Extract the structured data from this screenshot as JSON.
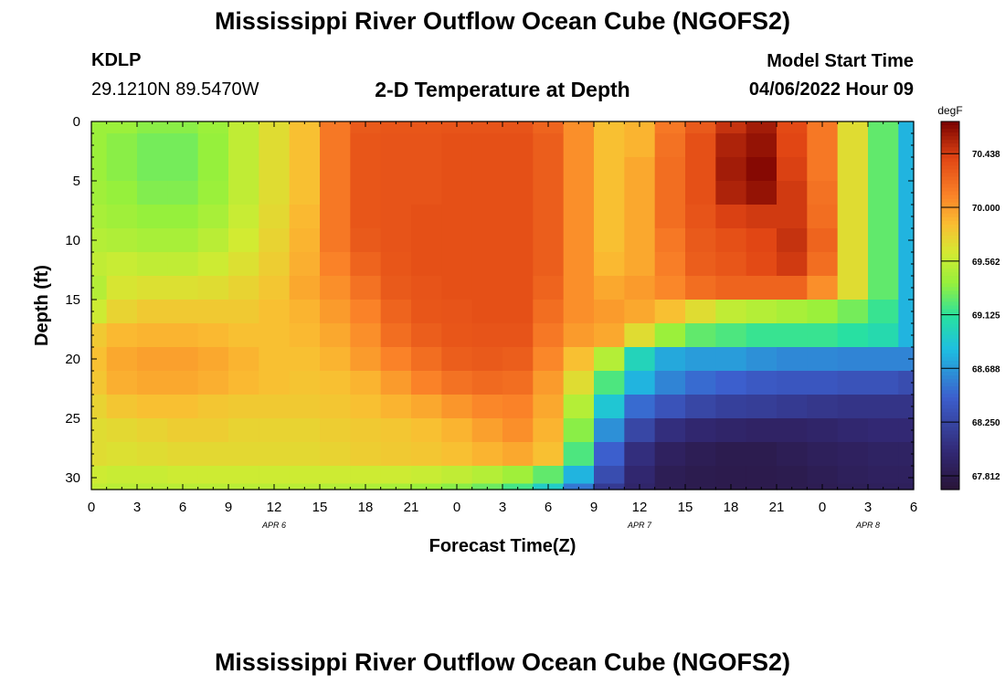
{
  "page": {
    "title": "Mississippi River Outflow Ocean Cube (NGOFS2)",
    "station": {
      "id": "KDLP",
      "coords": "29.1210N  89.5470W"
    },
    "subtitle": "2-D Temperature at Depth",
    "model_start": {
      "label": "Model Start Time",
      "value": "04/06/2022 Hour 09"
    },
    "footer_title": "Mississippi River Outflow Ocean Cube (NGOFS2)"
  },
  "chart_data": {
    "type": "heatmap",
    "title": "2-D Temperature at Depth",
    "xlabel": "Forecast Time(Z)",
    "ylabel": "Depth (ft)",
    "x_range": [
      0,
      54
    ],
    "y_range": [
      0,
      31
    ],
    "x_major_ticks": [
      0,
      3,
      6,
      9,
      12,
      15,
      18,
      21,
      24,
      27,
      30,
      33,
      36,
      39,
      42,
      45,
      48,
      51,
      54
    ],
    "x_tick_labels": [
      "0",
      "3",
      "6",
      "9",
      "12",
      "15",
      "18",
      "21",
      "0",
      "3",
      "6",
      "9",
      "12",
      "15",
      "18",
      "21",
      "0",
      "3",
      "6"
    ],
    "date_labels": [
      {
        "text": "APR 6",
        "hour": 12
      },
      {
        "text": "APR 7",
        "hour": 36
      },
      {
        "text": "APR 8",
        "hour": 51
      }
    ],
    "y_ticks": [
      0,
      5,
      10,
      15,
      20,
      25,
      30
    ],
    "y_tick_labels": [
      "0",
      "5",
      "10",
      "15",
      "20",
      "25",
      "30"
    ],
    "colorbar": {
      "unit": "degF",
      "min": 67.7,
      "max": 70.7,
      "ticks": [
        70.438,
        70.0,
        69.562,
        69.125,
        68.688,
        68.25,
        67.812
      ],
      "tick_labels": [
        "70.438",
        "70.000",
        "69.562",
        "69.125",
        "68.688",
        "68.250",
        "67.812"
      ]
    },
    "time_hours": [
      0,
      2,
      4,
      6,
      8,
      10,
      12,
      14,
      16,
      18,
      20,
      22,
      24,
      26,
      28,
      30,
      32,
      34,
      36,
      38,
      40,
      42,
      44,
      46,
      48,
      50,
      52,
      54
    ],
    "depth_ft": [
      0,
      2,
      4,
      6,
      8,
      10,
      12,
      14,
      16,
      18,
      20,
      22,
      24,
      26,
      28,
      30,
      31
    ],
    "temperature_degF": [
      [
        69.4,
        69.4,
        69.35,
        69.35,
        69.4,
        69.55,
        69.7,
        69.85,
        70.15,
        70.3,
        70.32,
        70.32,
        70.33,
        70.33,
        70.33,
        70.25,
        70.05,
        69.85,
        69.9,
        70.15,
        70.3,
        70.48,
        70.58,
        70.38,
        70.15,
        69.7,
        69.25,
        68.8
      ],
      [
        69.4,
        69.35,
        69.3,
        69.3,
        69.38,
        69.55,
        69.7,
        69.85,
        70.15,
        70.32,
        70.33,
        70.33,
        70.35,
        70.35,
        70.35,
        70.28,
        70.05,
        69.85,
        69.9,
        70.18,
        70.35,
        70.55,
        70.62,
        70.4,
        70.15,
        69.7,
        69.25,
        68.8
      ],
      [
        69.4,
        69.35,
        69.3,
        69.3,
        69.38,
        69.55,
        69.7,
        69.85,
        70.15,
        70.32,
        70.33,
        70.33,
        70.35,
        70.35,
        70.35,
        70.28,
        70.05,
        69.85,
        69.95,
        70.2,
        70.35,
        70.58,
        70.66,
        70.42,
        70.15,
        69.7,
        69.25,
        68.8
      ],
      [
        69.42,
        69.38,
        69.33,
        69.33,
        69.4,
        69.55,
        69.7,
        69.85,
        70.15,
        70.32,
        70.33,
        70.33,
        70.35,
        70.35,
        70.35,
        70.28,
        70.05,
        69.85,
        69.95,
        70.2,
        70.35,
        70.55,
        70.62,
        70.45,
        70.18,
        69.7,
        69.25,
        68.8
      ],
      [
        69.45,
        69.42,
        69.38,
        69.38,
        69.45,
        69.58,
        69.72,
        69.88,
        70.15,
        70.32,
        70.33,
        70.35,
        70.35,
        70.35,
        70.35,
        70.28,
        70.05,
        69.85,
        69.95,
        70.2,
        70.33,
        70.42,
        70.45,
        70.45,
        70.2,
        69.7,
        69.25,
        68.8
      ],
      [
        69.5,
        69.48,
        69.45,
        69.45,
        69.52,
        69.62,
        69.75,
        69.9,
        70.15,
        70.3,
        70.33,
        70.35,
        70.35,
        70.35,
        70.35,
        70.28,
        70.05,
        69.85,
        69.95,
        70.15,
        70.3,
        70.35,
        70.4,
        70.48,
        70.25,
        69.7,
        69.25,
        68.8
      ],
      [
        69.55,
        69.58,
        69.55,
        69.55,
        69.6,
        69.68,
        69.78,
        69.92,
        70.1,
        70.25,
        70.32,
        70.35,
        70.35,
        70.35,
        70.35,
        70.28,
        70.05,
        69.88,
        69.95,
        70.12,
        70.28,
        70.32,
        70.38,
        70.45,
        70.2,
        69.7,
        69.25,
        68.8
      ],
      [
        69.5,
        69.65,
        69.68,
        69.68,
        69.7,
        69.75,
        69.82,
        69.95,
        70.05,
        70.18,
        70.3,
        70.33,
        70.35,
        70.35,
        70.35,
        70.25,
        70.05,
        69.95,
        70.0,
        70.08,
        70.2,
        70.25,
        70.25,
        70.25,
        70.05,
        69.7,
        69.25,
        68.8
      ],
      [
        69.6,
        69.75,
        69.8,
        69.8,
        69.8,
        69.8,
        69.85,
        69.9,
        70.0,
        70.1,
        70.25,
        70.32,
        70.33,
        70.35,
        70.35,
        70.2,
        70.05,
        70.0,
        69.95,
        69.85,
        69.7,
        69.55,
        69.5,
        69.45,
        69.4,
        69.3,
        69.15,
        68.8
      ],
      [
        69.8,
        69.88,
        69.9,
        69.9,
        69.88,
        69.85,
        69.85,
        69.88,
        69.95,
        70.05,
        70.2,
        70.28,
        70.32,
        70.33,
        70.33,
        70.15,
        70.0,
        69.95,
        69.7,
        69.4,
        69.25,
        69.2,
        69.15,
        69.15,
        69.15,
        69.1,
        69.05,
        68.8
      ],
      [
        69.85,
        69.95,
        69.98,
        69.98,
        69.95,
        69.9,
        69.85,
        69.85,
        69.9,
        70.0,
        70.1,
        70.2,
        70.28,
        70.3,
        70.28,
        70.08,
        69.85,
        69.5,
        69.0,
        68.75,
        68.7,
        68.7,
        68.65,
        68.62,
        68.62,
        68.6,
        68.6,
        68.6
      ],
      [
        69.82,
        69.92,
        69.95,
        69.95,
        69.92,
        69.88,
        69.85,
        69.83,
        69.85,
        69.9,
        70.0,
        70.1,
        70.18,
        70.22,
        70.2,
        70.0,
        69.7,
        69.2,
        68.8,
        68.6,
        68.5,
        68.45,
        68.4,
        68.38,
        68.38,
        68.35,
        68.35,
        68.3
      ],
      [
        69.75,
        69.82,
        69.85,
        69.85,
        69.82,
        69.8,
        69.8,
        69.8,
        69.82,
        69.85,
        69.9,
        69.95,
        70.02,
        70.08,
        70.1,
        69.95,
        69.5,
        68.9,
        68.5,
        68.35,
        68.25,
        68.2,
        68.18,
        68.15,
        68.12,
        68.1,
        68.1,
        68.1
      ],
      [
        69.7,
        69.72,
        69.75,
        69.78,
        69.78,
        69.75,
        69.75,
        69.75,
        69.78,
        69.8,
        69.82,
        69.85,
        69.9,
        69.98,
        70.05,
        69.9,
        69.35,
        68.65,
        68.25,
        68.05,
        67.98,
        67.95,
        67.93,
        67.93,
        67.95,
        67.98,
        68.0,
        68.0
      ],
      [
        69.7,
        69.68,
        69.7,
        69.72,
        69.72,
        69.72,
        69.72,
        69.72,
        69.75,
        69.78,
        69.8,
        69.82,
        69.85,
        69.9,
        69.95,
        69.85,
        69.2,
        68.45,
        68.05,
        67.9,
        67.85,
        67.82,
        67.82,
        67.85,
        67.88,
        67.9,
        67.92,
        67.92
      ],
      [
        69.6,
        69.58,
        69.58,
        69.6,
        69.6,
        69.6,
        69.6,
        69.6,
        69.6,
        69.6,
        69.6,
        69.58,
        69.55,
        69.5,
        69.42,
        69.25,
        68.8,
        68.3,
        67.98,
        67.85,
        67.82,
        67.81,
        67.81,
        67.82,
        67.85,
        67.88,
        67.9,
        67.9
      ],
      [
        69.55,
        69.52,
        69.52,
        69.52,
        69.52,
        69.52,
        69.52,
        69.52,
        69.5,
        69.48,
        69.45,
        69.4,
        69.35,
        69.28,
        69.18,
        68.95,
        68.55,
        68.15,
        67.95,
        67.85,
        67.82,
        67.81,
        67.81,
        67.82,
        67.84,
        67.86,
        67.88,
        67.88
      ]
    ]
  }
}
